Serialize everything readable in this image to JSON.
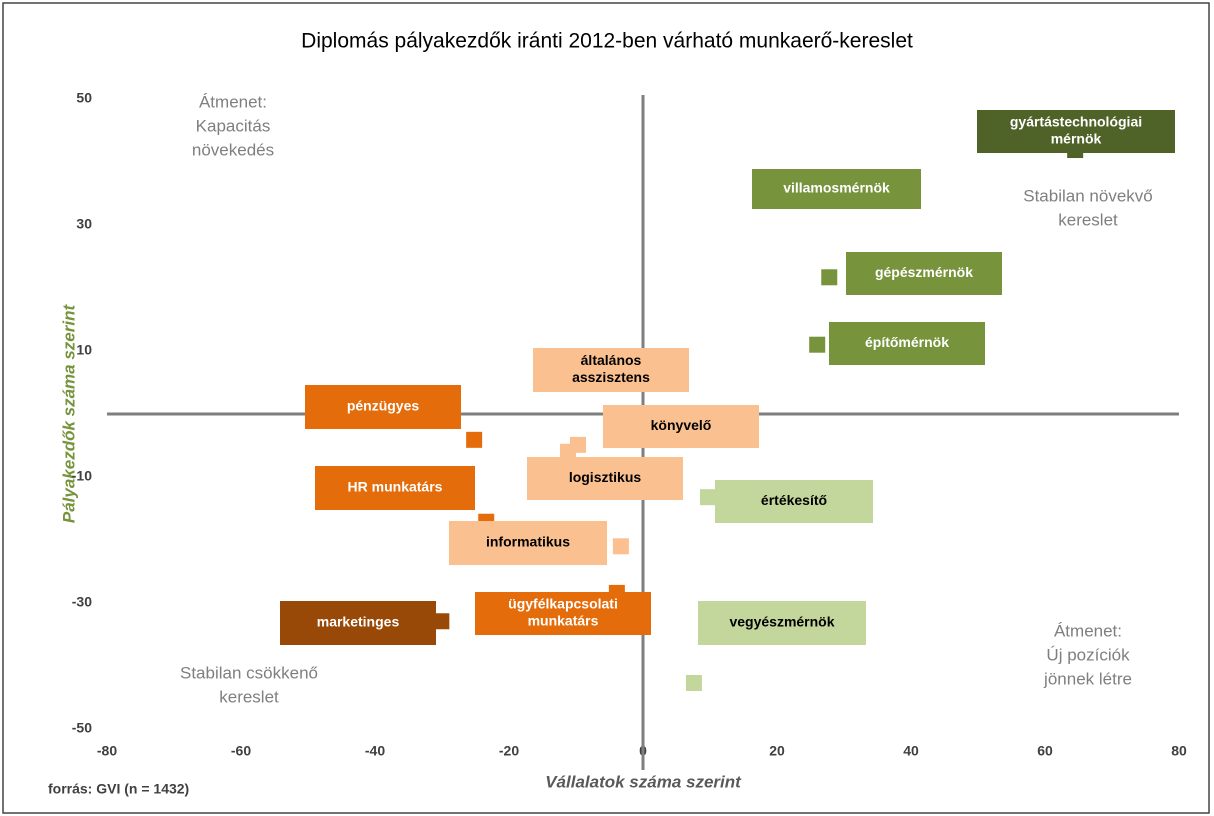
{
  "chart_data": {
    "type": "scatter",
    "title": "Diplomás pályakezdők iránti 2012-ben várható munkaerő-kereslet",
    "x_label": "Vállalatok száma szerint",
    "y_label": "Pályakezdők száma szerint",
    "source": "forrás: GVI (n = 1432)",
    "xlim": [
      -80,
      80
    ],
    "ylim": [
      -50,
      50
    ],
    "xticks": [
      -80,
      -60,
      -40,
      -20,
      0,
      20,
      40,
      60,
      80
    ],
    "yticks": [
      -50,
      -30,
      -10,
      10,
      30,
      50
    ],
    "annotations": [
      {
        "lines": [
          "Átmenet:",
          "Kapacitás",
          "növekedés"
        ]
      },
      {
        "lines": [
          "Stabilan növekvő",
          "kereslet"
        ]
      },
      {
        "lines": [
          "Stabilan csökkenő",
          "kereslet"
        ]
      },
      {
        "lines": [
          "Átmenet:",
          "Új pozíciók",
          "jönnek létre"
        ]
      }
    ],
    "points": [
      {
        "label": [
          "gyártástechnológiai",
          "mérnök"
        ],
        "x": 64.5,
        "y": 41.9,
        "color": "#4f6228"
      },
      {
        "label": [
          "villamosmérnök"
        ],
        "x": 20,
        "y": 36,
        "color": "#77933c"
      },
      {
        "label": [
          "gépészmérnök"
        ],
        "x": 27.8,
        "y": 21.7,
        "color": "#77933c"
      },
      {
        "label": [
          "építőmérnök"
        ],
        "x": 26,
        "y": 11,
        "color": "#77933c"
      },
      {
        "label": [
          "általános",
          "asszisztens"
        ],
        "x": 0,
        "y": 7,
        "color": "#fac090"
      },
      {
        "label": [
          "pénzügyes"
        ],
        "x": -25.2,
        "y": -4.1,
        "color": "#e46c0a"
      },
      {
        "label": [
          "könyvelő"
        ],
        "x": -9.7,
        "y": -4.9,
        "color": "#fac090"
      },
      {
        "label": [
          "logisztikus"
        ],
        "x": -11.2,
        "y": -6,
        "color": "#fac090"
      },
      {
        "label": [
          "HR munkatárs"
        ],
        "x": -23.4,
        "y": -17.1,
        "color": "#e46c0a"
      },
      {
        "label": [
          "értékesítő"
        ],
        "x": 9.7,
        "y": -13.2,
        "color": "#c3d69b"
      },
      {
        "label": [
          "informatikus"
        ],
        "x": -3.3,
        "y": -21,
        "color": "#fac090"
      },
      {
        "label": [
          "ügyfélkapcsolati",
          "munkatárs"
        ],
        "x": -3.9,
        "y": -28.4,
        "color": "#e46c0a"
      },
      {
        "label": [
          "marketinges"
        ],
        "x": -30.1,
        "y": -32.9,
        "color": "#984807"
      },
      {
        "label": [
          "vegyészmérnök"
        ],
        "x": 7.6,
        "y": -42.7,
        "color": "#c3d69b"
      }
    ]
  }
}
